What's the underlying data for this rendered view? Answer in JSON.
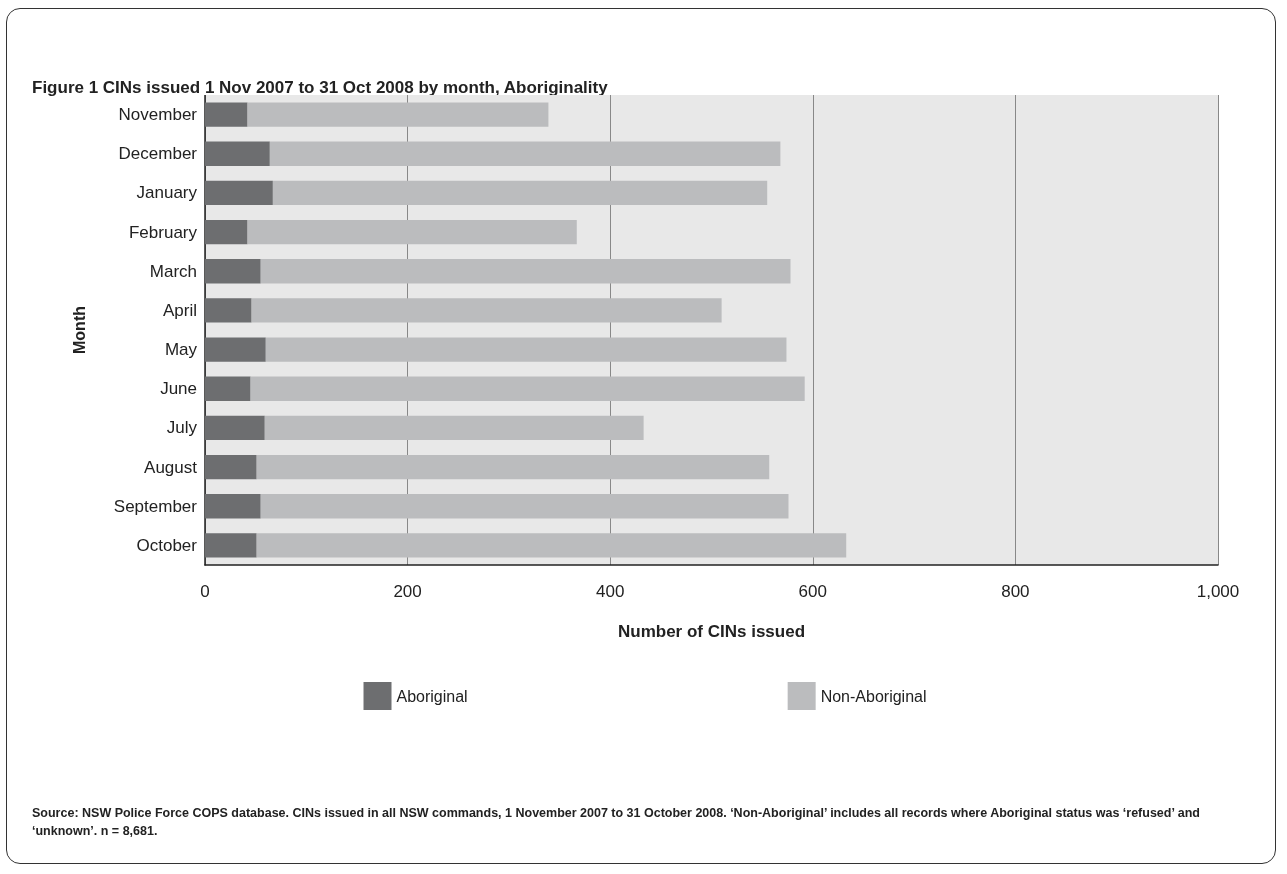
{
  "chart_data": {
    "type": "bar",
    "orientation": "horizontal",
    "stacked": true,
    "title": "Figure 1 CINs issued 1 Nov 2007 to 31 Oct 2008 by month, Aboriginality",
    "xlabel": "Number of CINs issued",
    "ylabel": "Month",
    "categories": [
      "November",
      "December",
      "January",
      "February",
      "March",
      "April",
      "May",
      "June",
      "July",
      "August",
      "September",
      "October"
    ],
    "series": [
      {
        "name": "Aboriginal",
        "color": "#6d6e70",
        "values": [
          42,
          64,
          67,
          42,
          55,
          46,
          60,
          45,
          59,
          51,
          55,
          51
        ]
      },
      {
        "name": "Non-Aboriginal",
        "color": "#bbbcbe",
        "values": [
          297,
          504,
          488,
          325,
          523,
          464,
          514,
          547,
          374,
          506,
          521,
          582
        ]
      }
    ],
    "xlim": [
      0,
      1000
    ],
    "xticks": [
      0,
      200,
      400,
      600,
      800,
      {
        "value": 1000,
        "label": "1,000"
      }
    ],
    "grid": "x",
    "legend": "bottom",
    "annotations": [
      "Source: NSW Police Force COPS database. CINs issued in all NSW commands, 1 November 2007 to 31 October 2008. ‘Non-Aboriginal’ includes all records where Aboriginal status was ‘refused’ and ‘unknown’. n = 8,681."
    ]
  }
}
